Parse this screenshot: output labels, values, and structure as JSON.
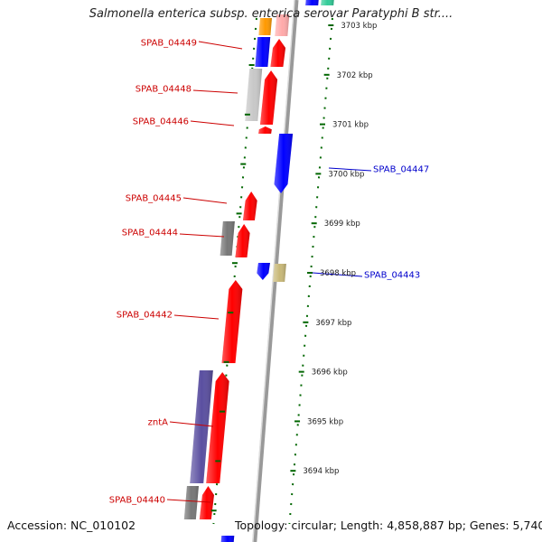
{
  "title": "Salmonella enterica subsp. enterica serovar Paratyphi B str....",
  "accession_text": "Accession: NC_010102",
  "topology_text": "Topology: circular; Length: 4,858,887 bp; Genes: 5,740",
  "scale_labels": [
    "3703 kbp",
    "3702 kbp",
    "3701 kbp",
    "3700 kbp",
    "3699 kbp",
    "3698 kbp",
    "3697 kbp",
    "3696 kbp",
    "3695 kbp",
    "3694 kbp"
  ],
  "gene_labels_left": [
    "SPAB_04449",
    "SPAB_04448",
    "SPAB_04446",
    "SPAB_04445",
    "SPAB_04444",
    "SPAB_04442",
    "zntA",
    "SPAB_04440"
  ],
  "gene_labels_right": [
    "SPAB_04447",
    "SPAB_04443"
  ],
  "colors": {
    "forward_gene": "#ff0000",
    "reverse_gene": "#0000ff",
    "pseudo_gray": "#777777",
    "light_gray": "#c8c8c8",
    "purple": "#5a4fa0",
    "tan": "#c8b878",
    "orange": "#ff9900",
    "teal": "#33cc99",
    "left_label": "#cc0000",
    "right_label": "#0000cc",
    "dotted_ring": "#006600"
  }
}
